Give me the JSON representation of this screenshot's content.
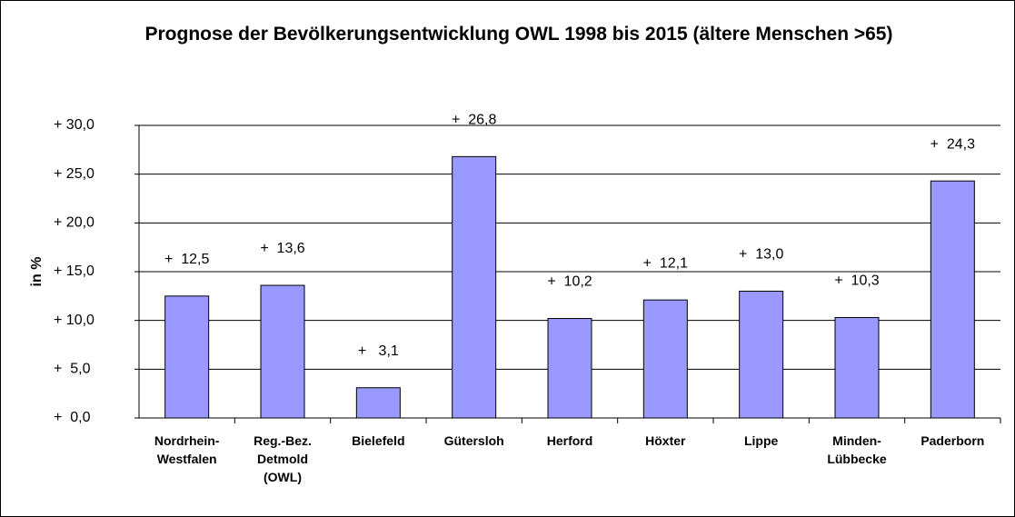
{
  "chart_data": {
    "type": "bar",
    "title": "Prognose der Bevölkerungsentwicklung OWL 1998 bis 2015 (ältere Menschen >65)",
    "y_label": "in %",
    "categories": [
      "Nordrhein-\nWestfalen",
      "Reg.-Bez.\nDetmold\n(OWL)",
      "Bielefeld",
      "Gütersloh",
      "Herford",
      "Höxter",
      "Lippe",
      "Minden-\nLübbecke",
      "Paderborn"
    ],
    "values": [
      12.5,
      13.6,
      3.1,
      26.8,
      10.2,
      12.1,
      13.0,
      10.3,
      24.3
    ],
    "value_labels": [
      "+  12,5",
      "+  13,6",
      "+   3,1",
      "+  26,8",
      "+  10,2",
      "+  12,1",
      "+  13,0",
      "+  10,3",
      "+  24,3"
    ],
    "color": "#9999ff",
    "ylim": [
      0,
      30
    ],
    "yticks": [
      {
        "value": 0,
        "label": "+  0,0"
      },
      {
        "value": 5,
        "label": "+  5,0"
      },
      {
        "value": 10,
        "label": "+ 10,0"
      },
      {
        "value": 15,
        "label": "+ 15,0"
      },
      {
        "value": 20,
        "label": "+ 20,0"
      },
      {
        "value": 25,
        "label": "+ 25,0"
      },
      {
        "value": 30,
        "label": "+ 30,0"
      }
    ],
    "grid": true
  }
}
